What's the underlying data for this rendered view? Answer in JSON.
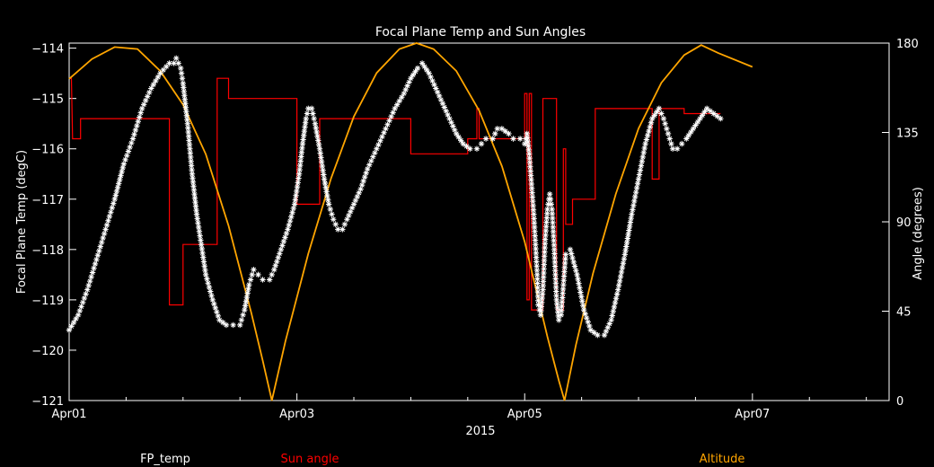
{
  "chart_data": {
    "type": "line",
    "title": "Focal Plane Temp and Sun Angles",
    "xlabel": "2015",
    "ylabel_left": "Focal Plane Temp (degC)",
    "ylabel_right": "Angle (degrees)",
    "x_unit": "days since Apr01 00:00",
    "x_ticks": [
      {
        "x": 0,
        "label": "Apr01"
      },
      {
        "x": 2,
        "label": "Apr03"
      },
      {
        "x": 4,
        "label": "Apr05"
      },
      {
        "x": 6,
        "label": "Apr07"
      }
    ],
    "xlim": [
      0,
      7.2
    ],
    "ylim_left": [
      -121,
      -113.9
    ],
    "ylim_right": [
      0,
      180
    ],
    "y_left_ticks": [
      -114,
      -115,
      -116,
      -117,
      -118,
      -119,
      -120,
      -121
    ],
    "y_left_tick_labels": [
      "−114",
      "−115",
      "−116",
      "−117",
      "−118",
      "−119",
      "−120",
      "−121"
    ],
    "y_right_ticks": [
      180,
      135,
      90,
      45,
      0
    ],
    "y_right_tick_labels": [
      "180",
      "135",
      "90",
      "45",
      "0"
    ],
    "legend": {
      "placement": "bottom",
      "items": [
        {
          "label": "FP_temp",
          "color": "#ffffff"
        },
        {
          "label": "Sun angle",
          "color": "#ff0000"
        },
        {
          "label": "Altitude",
          "color": "#ffa500"
        }
      ]
    },
    "series": [
      {
        "name": "FP_temp",
        "axis": "left",
        "color": "#ffffff",
        "marker": "asterisk",
        "points": [
          [
            0.0,
            -119.6
          ],
          [
            0.08,
            -119.3
          ],
          [
            0.16,
            -118.8
          ],
          [
            0.24,
            -118.2
          ],
          [
            0.32,
            -117.6
          ],
          [
            0.4,
            -117.0
          ],
          [
            0.48,
            -116.3
          ],
          [
            0.56,
            -115.8
          ],
          [
            0.64,
            -115.2
          ],
          [
            0.72,
            -114.8
          ],
          [
            0.8,
            -114.5
          ],
          [
            0.88,
            -114.3
          ],
          [
            0.92,
            -114.3
          ],
          [
            0.94,
            -114.2
          ],
          [
            0.96,
            -114.3
          ],
          [
            0.98,
            -114.4
          ],
          [
            1.0,
            -114.7
          ],
          [
            1.04,
            -115.5
          ],
          [
            1.08,
            -116.5
          ],
          [
            1.12,
            -117.3
          ],
          [
            1.16,
            -117.9
          ],
          [
            1.2,
            -118.5
          ],
          [
            1.26,
            -119.0
          ],
          [
            1.32,
            -119.4
          ],
          [
            1.38,
            -119.5
          ],
          [
            1.44,
            -119.5
          ],
          [
            1.5,
            -119.5
          ],
          [
            1.54,
            -119.2
          ],
          [
            1.58,
            -118.7
          ],
          [
            1.62,
            -118.4
          ],
          [
            1.66,
            -118.5
          ],
          [
            1.7,
            -118.6
          ],
          [
            1.76,
            -118.6
          ],
          [
            1.8,
            -118.4
          ],
          [
            1.86,
            -118.0
          ],
          [
            1.92,
            -117.6
          ],
          [
            1.98,
            -117.1
          ],
          [
            2.02,
            -116.5
          ],
          [
            2.05,
            -115.9
          ],
          [
            2.08,
            -115.4
          ],
          [
            2.1,
            -115.2
          ],
          [
            2.13,
            -115.2
          ],
          [
            2.16,
            -115.5
          ],
          [
            2.2,
            -116.0
          ],
          [
            2.24,
            -116.6
          ],
          [
            2.28,
            -117.1
          ],
          [
            2.32,
            -117.4
          ],
          [
            2.36,
            -117.6
          ],
          [
            2.4,
            -117.6
          ],
          [
            2.44,
            -117.4
          ],
          [
            2.5,
            -117.1
          ],
          [
            2.56,
            -116.8
          ],
          [
            2.62,
            -116.4
          ],
          [
            2.7,
            -116.0
          ],
          [
            2.78,
            -115.6
          ],
          [
            2.86,
            -115.2
          ],
          [
            2.94,
            -114.9
          ],
          [
            3.0,
            -114.6
          ],
          [
            3.06,
            -114.4
          ],
          [
            3.1,
            -114.3
          ],
          [
            3.16,
            -114.5
          ],
          [
            3.22,
            -114.8
          ],
          [
            3.28,
            -115.1
          ],
          [
            3.34,
            -115.4
          ],
          [
            3.4,
            -115.7
          ],
          [
            3.46,
            -115.9
          ],
          [
            3.52,
            -116.0
          ],
          [
            3.58,
            -116.0
          ],
          [
            3.62,
            -115.9
          ],
          [
            3.66,
            -115.8
          ],
          [
            3.72,
            -115.8
          ],
          [
            3.76,
            -115.6
          ],
          [
            3.8,
            -115.6
          ],
          [
            3.86,
            -115.7
          ],
          [
            3.9,
            -115.8
          ],
          [
            3.96,
            -115.8
          ],
          [
            4.0,
            -115.9
          ],
          [
            4.02,
            -115.7
          ],
          [
            4.04,
            -116.1
          ],
          [
            4.08,
            -117.3
          ],
          [
            4.11,
            -118.5
          ],
          [
            4.12,
            -119.1
          ],
          [
            4.14,
            -119.3
          ],
          [
            4.16,
            -118.8
          ],
          [
            4.18,
            -117.8
          ],
          [
            4.2,
            -117.2
          ],
          [
            4.22,
            -116.9
          ],
          [
            4.24,
            -117.2
          ],
          [
            4.26,
            -118.0
          ],
          [
            4.28,
            -119.0
          ],
          [
            4.3,
            -119.4
          ],
          [
            4.32,
            -119.3
          ],
          [
            4.34,
            -118.7
          ],
          [
            4.36,
            -118.1
          ],
          [
            4.4,
            -118.0
          ],
          [
            4.46,
            -118.5
          ],
          [
            4.52,
            -119.2
          ],
          [
            4.58,
            -119.6
          ],
          [
            4.64,
            -119.7
          ],
          [
            4.7,
            -119.7
          ],
          [
            4.76,
            -119.4
          ],
          [
            4.82,
            -118.8
          ],
          [
            4.88,
            -118.1
          ],
          [
            4.94,
            -117.3
          ],
          [
            5.0,
            -116.6
          ],
          [
            5.06,
            -115.9
          ],
          [
            5.12,
            -115.4
          ],
          [
            5.18,
            -115.2
          ],
          [
            5.22,
            -115.4
          ],
          [
            5.26,
            -115.7
          ],
          [
            5.3,
            -116.0
          ],
          [
            5.34,
            -116.0
          ],
          [
            5.38,
            -115.9
          ],
          [
            5.42,
            -115.8
          ],
          [
            5.48,
            -115.6
          ],
          [
            5.54,
            -115.4
          ],
          [
            5.6,
            -115.2
          ],
          [
            5.66,
            -115.3
          ],
          [
            5.72,
            -115.4
          ]
        ]
      },
      {
        "name": "Sun angle",
        "axis": "left",
        "color": "#ff0000",
        "style": "step",
        "points": [
          [
            0.0,
            -114.6
          ],
          [
            0.02,
            -114.6
          ],
          [
            0.03,
            -115.8
          ],
          [
            0.1,
            -115.8
          ],
          [
            0.1,
            -115.4
          ],
          [
            0.88,
            -115.4
          ],
          [
            0.88,
            -119.1
          ],
          [
            1.0,
            -119.1
          ],
          [
            1.0,
            -117.9
          ],
          [
            1.3,
            -117.9
          ],
          [
            1.3,
            -114.6
          ],
          [
            1.4,
            -114.6
          ],
          [
            1.4,
            -115.0
          ],
          [
            1.8,
            -115.0
          ],
          [
            1.8,
            -115.0
          ],
          [
            2.0,
            -115.0
          ],
          [
            2.0,
            -117.1
          ],
          [
            2.2,
            -117.1
          ],
          [
            2.2,
            -115.4
          ],
          [
            3.0,
            -115.4
          ],
          [
            3.0,
            -116.1
          ],
          [
            3.5,
            -116.1
          ],
          [
            3.5,
            -115.8
          ],
          [
            3.58,
            -115.8
          ],
          [
            3.58,
            -115.2
          ],
          [
            3.6,
            -115.2
          ],
          [
            3.6,
            -115.8
          ],
          [
            3.64,
            -115.8
          ],
          [
            3.64,
            -115.8
          ],
          [
            4.0,
            -115.8
          ],
          [
            4.0,
            -114.9
          ],
          [
            4.02,
            -114.9
          ],
          [
            4.02,
            -119.0
          ],
          [
            4.04,
            -119.0
          ],
          [
            4.04,
            -114.9
          ],
          [
            4.06,
            -114.9
          ],
          [
            4.06,
            -119.2
          ],
          [
            4.16,
            -119.2
          ],
          [
            4.16,
            -115.0
          ],
          [
            4.28,
            -115.0
          ],
          [
            4.28,
            -119.2
          ],
          [
            4.34,
            -119.2
          ],
          [
            4.34,
            -116.0
          ],
          [
            4.36,
            -116.0
          ],
          [
            4.36,
            -117.5
          ],
          [
            4.42,
            -117.5
          ],
          [
            4.42,
            -117.0
          ],
          [
            4.62,
            -117.0
          ],
          [
            4.62,
            -115.2
          ],
          [
            5.12,
            -115.2
          ],
          [
            5.12,
            -116.6
          ],
          [
            5.18,
            -116.6
          ],
          [
            5.18,
            -115.2
          ],
          [
            5.4,
            -115.2
          ],
          [
            5.4,
            -115.3
          ],
          [
            5.72,
            -115.3
          ]
        ]
      },
      {
        "name": "Altitude",
        "axis": "right",
        "color": "#ffa500",
        "style": "line",
        "points": [
          [
            0.0,
            162
          ],
          [
            0.2,
            172
          ],
          [
            0.4,
            178
          ],
          [
            0.6,
            177
          ],
          [
            0.8,
            166
          ],
          [
            1.0,
            149
          ],
          [
            1.2,
            124
          ],
          [
            1.4,
            88
          ],
          [
            1.6,
            44
          ],
          [
            1.7,
            20
          ],
          [
            1.78,
            0
          ],
          [
            1.9,
            30
          ],
          [
            2.1,
            74
          ],
          [
            2.3,
            112
          ],
          [
            2.5,
            143
          ],
          [
            2.7,
            165
          ],
          [
            2.9,
            177
          ],
          [
            3.05,
            180
          ],
          [
            3.2,
            177
          ],
          [
            3.4,
            166
          ],
          [
            3.6,
            146
          ],
          [
            3.8,
            118
          ],
          [
            4.0,
            80
          ],
          [
            4.2,
            32
          ],
          [
            4.3,
            10
          ],
          [
            4.35,
            0
          ],
          [
            4.45,
            28
          ],
          [
            4.6,
            64
          ],
          [
            4.8,
            104
          ],
          [
            5.0,
            137
          ],
          [
            5.2,
            160
          ],
          [
            5.4,
            174
          ],
          [
            5.55,
            179
          ],
          [
            5.7,
            175
          ],
          [
            6.0,
            168
          ]
        ]
      }
    ]
  }
}
